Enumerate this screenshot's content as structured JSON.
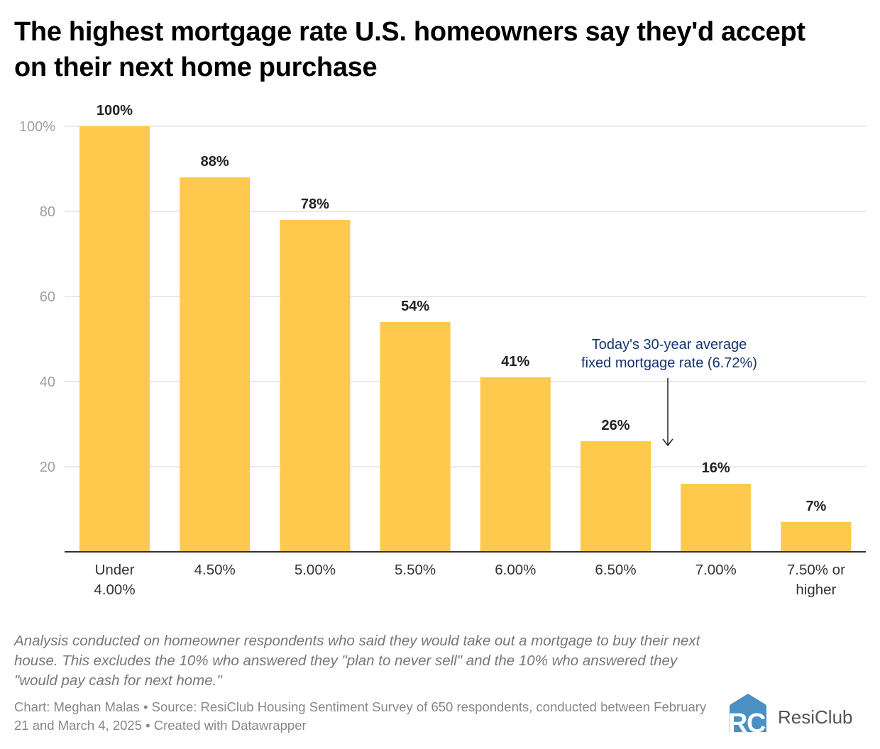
{
  "title": "The highest mortgage rate U.S. homeowners say they'd accept on their next home purchase",
  "chart_data": {
    "type": "bar",
    "categories": [
      [
        "Under",
        "4.00%"
      ],
      [
        "4.50%"
      ],
      [
        "5.00%"
      ],
      [
        "5.50%"
      ],
      [
        "6.00%"
      ],
      [
        "6.50%"
      ],
      [
        "7.00%"
      ],
      [
        "7.50% or",
        "higher"
      ]
    ],
    "values": [
      100,
      88,
      78,
      54,
      41,
      26,
      16,
      7
    ],
    "data_labels": [
      "100%",
      "88%",
      "78%",
      "54%",
      "41%",
      "26%",
      "16%",
      "7%"
    ],
    "ylim": [
      0,
      100
    ],
    "yticks": [
      20,
      40,
      60,
      80,
      100
    ],
    "ytick_labels": [
      "20",
      "40",
      "60",
      "80",
      "100%"
    ],
    "grid": true,
    "bar_color": "#fec94c",
    "annotation": {
      "lines": [
        "Today's 30-year average",
        "fixed mortgage rate (6.72%)"
      ],
      "x_value": 6.72,
      "color": "#15336e"
    }
  },
  "notes": "Analysis conducted on homeowner respondents who said they would take out a mortgage to buy their next house. This excludes the 10% who answered they \"plan to never sell\" and the 10% who answered they \"would pay cash for next home.\"",
  "source": "Chart: Meghan Malas • Source: ResiClub Housing Sentiment Survey of 650 respondents, conducted between February 21 and March 4, 2025 • Created with Datawrapper",
  "logo": {
    "text": "ResiClub",
    "mark": "RC",
    "color": "#4a90c2"
  }
}
